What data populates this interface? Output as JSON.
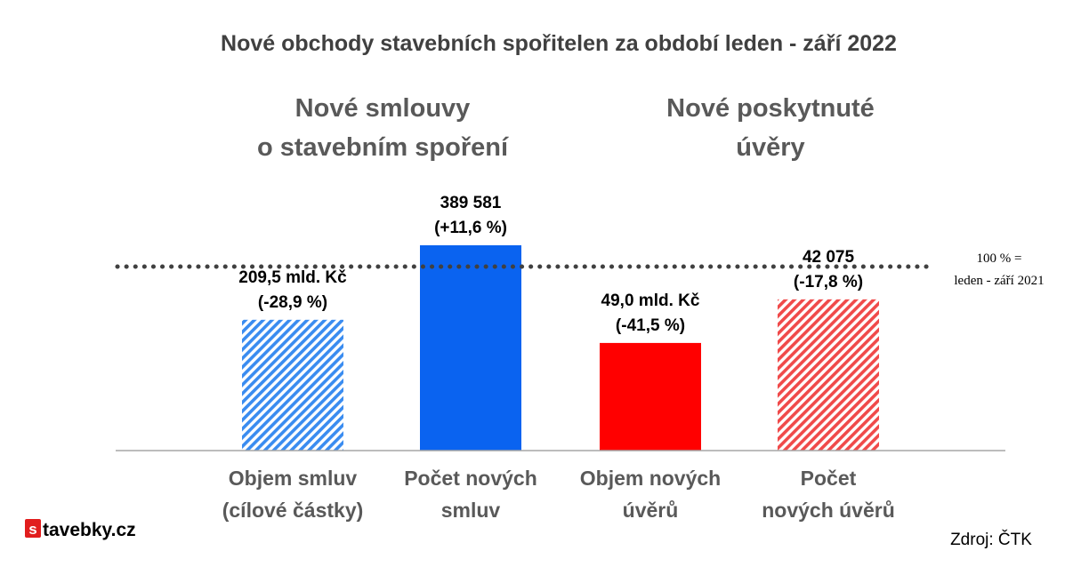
{
  "chart_data": {
    "type": "bar",
    "title": "Nové obchody stavebních spořitelen za období leden - září 2022",
    "groups": [
      {
        "title_lines": [
          "Nové smlouvy",
          "o stavebním spoření"
        ]
      },
      {
        "title_lines": [
          "Nové poskytnuté",
          "úvěry"
        ]
      }
    ],
    "categories": [
      [
        "Objem smluv",
        "(cílové částky)"
      ],
      [
        "Počet  nových",
        "smluv"
      ],
      [
        "Objem nových",
        "úvěrů"
      ],
      [
        "Počet",
        "nových úvěrů"
      ]
    ],
    "values": [
      71.1,
      111.6,
      58.5,
      82.2
    ],
    "value_unit": "% of leden - září 2021",
    "data_labels": [
      [
        "209,5 mld. Kč",
        "(-28,9 %)"
      ],
      [
        "389 581",
        "(+11,6 %)"
      ],
      [
        "49,0 mld. Kč",
        "(-41,5 %)"
      ],
      [
        "42 075",
        "(-17,8 %)"
      ]
    ],
    "bar_colors": [
      "#3a8cf0",
      "#0a63f0",
      "#ff0000",
      "#f04a4a"
    ],
    "bar_hatched": [
      true,
      false,
      false,
      true
    ],
    "reference_line": {
      "value": 100,
      "style": "dotted",
      "label_lines": [
        "100 % =",
        "leden - září 2021"
      ]
    },
    "ylim": [
      0,
      150
    ],
    "grid": false,
    "legend": "none"
  },
  "source": "Zdroj: ČTK",
  "logo": {
    "badge": "s",
    "text": "tavebky.cz"
  }
}
